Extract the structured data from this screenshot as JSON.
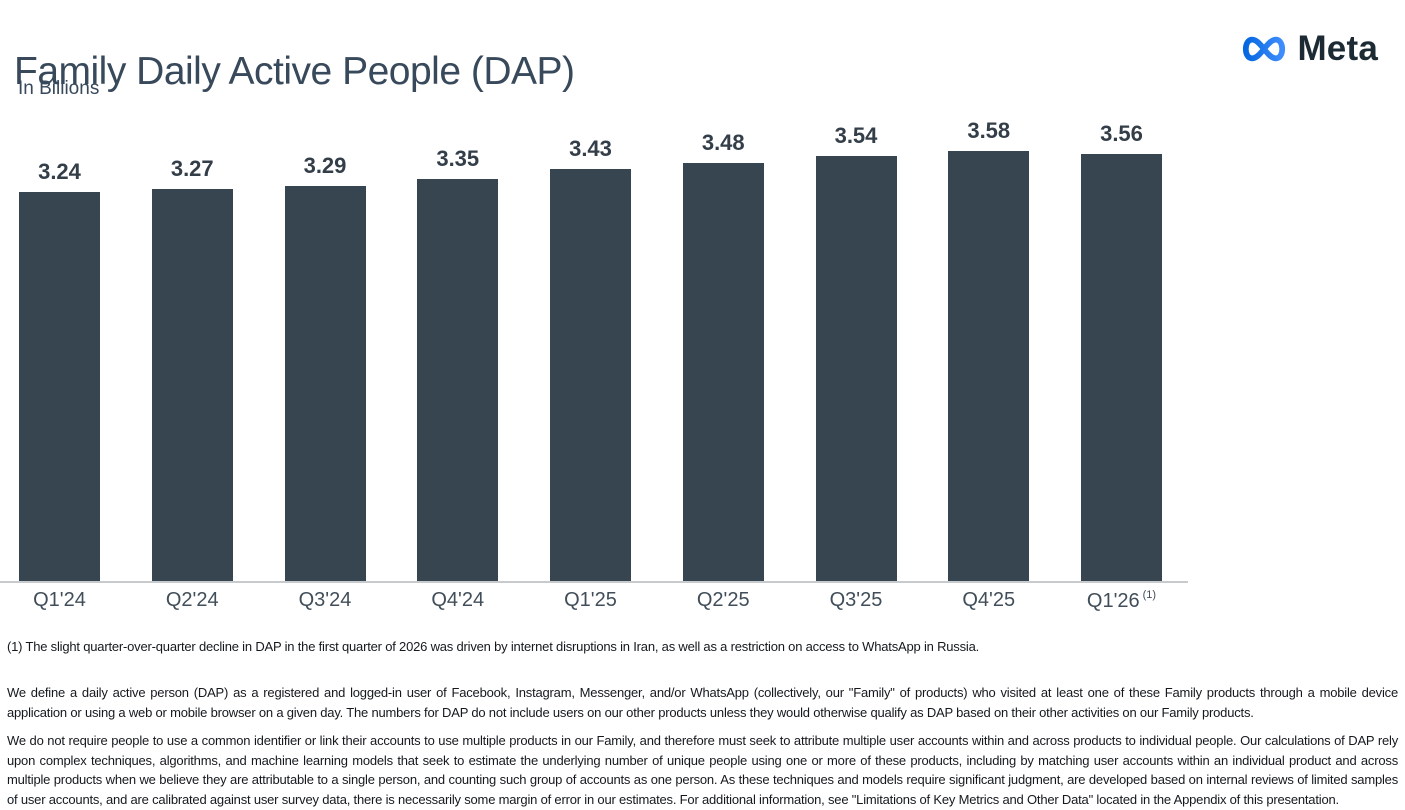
{
  "header": {
    "title": "Family Daily Active People (DAP)",
    "subtitle": "In Billions",
    "logo_text": "Meta",
    "logo_icon": "meta-infinity-icon"
  },
  "colors": {
    "background": "#FFFFFF",
    "bar": "#36454F",
    "title": "#37495A",
    "value_label": "#333E48",
    "axis_label": "#414E59",
    "axis_line": "#C7CBCE",
    "body_text": "#15191E",
    "logo_text": "#1C2B33",
    "logo_grad_start": "#0667E0",
    "logo_grad_end": "#3E8DFC"
  },
  "chart_data": {
    "type": "bar",
    "title": "Family Daily Active People (DAP)",
    "ylabel": "In Billions",
    "xlabel": "",
    "categories": [
      "Q1'24",
      "Q2'24",
      "Q3'24",
      "Q4'24",
      "Q1'25",
      "Q2'25",
      "Q3'25",
      "Q4'25",
      "Q1'26"
    ],
    "values": [
      3.24,
      3.27,
      3.29,
      3.35,
      3.43,
      3.48,
      3.54,
      3.58,
      3.56
    ],
    "ylim": [
      0,
      3.9
    ],
    "grid": false,
    "legend": false,
    "bar_color": "#36454F",
    "data_labels": [
      "3.24",
      "3.27",
      "3.29",
      "3.35",
      "3.43",
      "3.48",
      "3.54",
      "3.58",
      "3.56"
    ],
    "footnote_marker": "(1)",
    "footnote_marker_on": "Q1'26"
  },
  "footnotes": {
    "note1": "(1) The slight quarter-over-quarter decline in DAP in the first quarter of 2026 was driven by internet disruptions in Iran, as well as a restriction on access to WhatsApp in Russia.",
    "definition": "We define a daily active person (DAP) as a registered and logged-in user of Facebook, Instagram, Messenger, and/or WhatsApp (collectively, our \"Family\" of products) who visited at least one of these Family products through a mobile device application or using a web or mobile browser on a given day. The numbers for DAP do not include users on our other products unless they would otherwise qualify as DAP based on their other activities on our Family products.",
    "methodology": "We do not require people to use a common identifier or link their accounts to use multiple products in our Family, and therefore must seek to attribute multiple user accounts within and across products to individual people. Our calculations of DAP rely upon complex techniques, algorithms, and machine learning models that seek to estimate the underlying number of unique people using one or more of these products, including by matching user accounts within an individual product and across multiple products when we believe they are attributable to a single person, and counting such group of accounts as one person. As these techniques and models require significant judgment, are developed based on internal reviews of limited samples of user accounts, and are calibrated against user survey data, there is necessarily some margin of error in our estimates. For additional information, see \"Limitations of Key Metrics and Other Data\" located in the Appendix of this presentation."
  }
}
